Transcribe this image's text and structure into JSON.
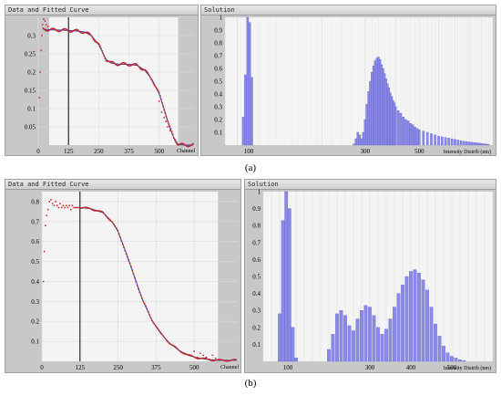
{
  "figure_labels": {
    "a": "(a)",
    "b": "(b)"
  },
  "panel_a": {
    "left_title": "Data and Fitted Curve",
    "right_title": "Solution"
  },
  "panel_b": {
    "left_title": "Data and Fitted Curve",
    "right_title": "Solution"
  },
  "colors": {
    "data_point": "#c0282c",
    "fit_curve": "#3a3aaa",
    "bar": "#8a8ae6",
    "bar_edge": "#5858c8",
    "shade": "#c8c8c8"
  },
  "chart_data": [
    {
      "id": "a_left",
      "type": "scatter",
      "title": "Data and Fitted Curve",
      "xlabel": "Channel",
      "ylabel": "",
      "xlim": [
        0,
        640
      ],
      "ylim": [
        0,
        0.35
      ],
      "xticks": [
        0,
        125,
        250,
        375,
        500
      ],
      "yticks": [
        0.05,
        0.1,
        0.15,
        0.2,
        0.25,
        0.3
      ],
      "ytick_labels": [
        "0.05",
        "0.1",
        "0.15",
        "0.2",
        "0.25",
        "0.3"
      ],
      "shaded_ranges": [
        [
          0,
          45
        ],
        [
          578,
          640
        ]
      ],
      "vline": 125,
      "curve_x": [
        20,
        45,
        100,
        150,
        190,
        220,
        250,
        265,
        280,
        300,
        330,
        380,
        410,
        440,
        470,
        500,
        520,
        540,
        560,
        578,
        600,
        640
      ],
      "curve_y": [
        0.318,
        0.316,
        0.315,
        0.313,
        0.31,
        0.3,
        0.275,
        0.255,
        0.235,
        0.225,
        0.222,
        0.221,
        0.218,
        0.205,
        0.18,
        0.14,
        0.1,
        0.055,
        0.02,
        0.002,
        0.0,
        0.0
      ],
      "scatter_extra": [
        [
          5,
          0.13
        ],
        [
          8,
          0.2
        ],
        [
          12,
          0.26
        ],
        [
          15,
          0.3
        ],
        [
          18,
          0.33
        ],
        [
          22,
          0.345
        ],
        [
          28,
          0.34
        ],
        [
          33,
          0.33
        ],
        [
          40,
          0.325
        ],
        [
          500,
          0.12
        ],
        [
          510,
          0.09
        ],
        [
          520,
          0.075
        ],
        [
          528,
          0.065
        ],
        [
          535,
          0.05
        ],
        [
          545,
          0.04
        ],
        [
          555,
          0.03
        ],
        [
          565,
          0.015
        ]
      ]
    },
    {
      "id": "a_right",
      "type": "bar",
      "title": "Solution",
      "xlabel": "Intensity Distrib (nm)",
      "ylabel": "",
      "xscale": "log",
      "xlim": [
        80,
        1000
      ],
      "ylim": [
        0,
        1
      ],
      "xticks": [
        100,
        300,
        500
      ],
      "yticks": [
        0.1,
        0.2,
        0.3,
        0.4,
        0.5,
        0.6,
        0.7,
        0.8,
        0.9,
        1
      ],
      "ytick_labels": [
        "0.1",
        "0.2",
        "0.3",
        "0.4",
        "0.5",
        "0.6",
        "0.7",
        "0.8",
        "0.9",
        "1"
      ],
      "x": [
        95,
        97,
        99,
        101,
        103,
        270,
        275,
        280,
        285,
        290,
        295,
        300,
        305,
        310,
        315,
        320,
        325,
        330,
        335,
        340,
        345,
        350,
        355,
        360,
        365,
        370,
        375,
        380,
        385,
        390,
        395,
        400,
        410,
        420,
        430,
        440,
        450,
        460,
        470,
        480,
        490,
        500,
        520,
        540,
        560,
        580,
        600,
        620,
        640,
        660,
        680,
        700,
        720,
        740,
        760,
        780,
        800,
        820,
        840,
        860,
        880,
        900,
        920,
        940,
        960
      ],
      "values": [
        0.22,
        0.55,
        1.0,
        0.96,
        0.53,
        0.01,
        0.05,
        0.1,
        0.08,
        0.05,
        0.1,
        0.2,
        0.32,
        0.42,
        0.5,
        0.57,
        0.62,
        0.66,
        0.68,
        0.69,
        0.67,
        0.63,
        0.6,
        0.56,
        0.52,
        0.48,
        0.45,
        0.41,
        0.38,
        0.35,
        0.33,
        0.3,
        0.27,
        0.25,
        0.22,
        0.2,
        0.19,
        0.17,
        0.16,
        0.14,
        0.13,
        0.12,
        0.11,
        0.1,
        0.09,
        0.08,
        0.07,
        0.065,
        0.06,
        0.055,
        0.05,
        0.045,
        0.04,
        0.035,
        0.03,
        0.028,
        0.025,
        0.022,
        0.02,
        0.018,
        0.015,
        0.012,
        0.01,
        0.008,
        0.006
      ]
    },
    {
      "id": "b_left",
      "type": "scatter",
      "title": "Data and Fitted Curve",
      "xlabel": "Channel",
      "ylabel": "",
      "xlim": [
        0,
        640
      ],
      "ylim": [
        0,
        0.85
      ],
      "xticks": [
        0,
        125,
        250,
        375,
        500
      ],
      "yticks": [
        0.1,
        0.2,
        0.3,
        0.4,
        0.5,
        0.6,
        0.7,
        0.8
      ],
      "ytick_labels": [
        "0.1",
        "0.2",
        "0.3",
        "0.4",
        "0.5",
        "0.6",
        "0.7",
        "0.8"
      ],
      "shaded_ranges": [
        [
          578,
          640
        ]
      ],
      "vline": 125,
      "curve_x": [
        125,
        160,
        200,
        230,
        250,
        270,
        300,
        330,
        360,
        390,
        420,
        450,
        480,
        510,
        540,
        578,
        640
      ],
      "curve_y": [
        0.77,
        0.765,
        0.745,
        0.7,
        0.65,
        0.57,
        0.44,
        0.31,
        0.21,
        0.14,
        0.09,
        0.055,
        0.03,
        0.018,
        0.01,
        0.005,
        0.005
      ],
      "scatter_extra": [
        [
          5,
          0.4
        ],
        [
          8,
          0.55
        ],
        [
          12,
          0.68
        ],
        [
          16,
          0.73
        ],
        [
          20,
          0.76
        ],
        [
          25,
          0.8
        ],
        [
          30,
          0.81
        ],
        [
          35,
          0.79
        ],
        [
          40,
          0.78
        ],
        [
          45,
          0.8
        ],
        [
          50,
          0.78
        ],
        [
          55,
          0.77
        ],
        [
          60,
          0.79
        ],
        [
          65,
          0.77
        ],
        [
          70,
          0.78
        ],
        [
          75,
          0.77
        ],
        [
          80,
          0.78
        ],
        [
          85,
          0.77
        ],
        [
          90,
          0.78
        ],
        [
          95,
          0.76
        ],
        [
          100,
          0.78
        ],
        [
          105,
          0.77
        ],
        [
          110,
          0.77
        ],
        [
          115,
          0.77
        ],
        [
          120,
          0.77
        ],
        [
          470,
          0.04
        ],
        [
          490,
          0.03
        ],
        [
          500,
          0.05
        ],
        [
          510,
          0.02
        ],
        [
          520,
          0.04
        ],
        [
          530,
          0.03
        ],
        [
          540,
          0.02
        ],
        [
          550,
          0.01
        ],
        [
          560,
          0.03
        ],
        [
          570,
          0.015
        ]
      ]
    },
    {
      "id": "b_right",
      "type": "bar",
      "title": "Solution",
      "xlabel": "Intensity Distrib (nm)",
      "ylabel": "",
      "xlim": [
        40,
        600
      ],
      "ylim": [
        0,
        1
      ],
      "xticks": [
        100,
        300,
        400,
        500
      ],
      "yticks": [
        0.1,
        0.2,
        0.3,
        0.4,
        0.5,
        0.6,
        0.7,
        0.8,
        0.9,
        1
      ],
      "ytick_labels": [
        "0.1",
        "0.2",
        "0.3",
        "0.4",
        "0.5",
        "0.6",
        "0.7",
        "0.8",
        "0.9",
        "1"
      ],
      "x": [
        80,
        88,
        96,
        104,
        112,
        120,
        200,
        210,
        220,
        230,
        240,
        250,
        260,
        270,
        280,
        290,
        300,
        310,
        320,
        330,
        340,
        350,
        360,
        370,
        380,
        390,
        400,
        410,
        420,
        430,
        440,
        450,
        460,
        470,
        480,
        490,
        500,
        510,
        520,
        530
      ],
      "values": [
        0.28,
        0.83,
        1.0,
        0.9,
        0.2,
        0.02,
        0.07,
        0.16,
        0.28,
        0.3,
        0.27,
        0.21,
        0.18,
        0.25,
        0.3,
        0.33,
        0.32,
        0.27,
        0.2,
        0.16,
        0.19,
        0.25,
        0.32,
        0.4,
        0.45,
        0.5,
        0.53,
        0.54,
        0.52,
        0.48,
        0.42,
        0.32,
        0.22,
        0.15,
        0.09,
        0.05,
        0.03,
        0.02,
        0.01,
        0.005
      ]
    }
  ]
}
